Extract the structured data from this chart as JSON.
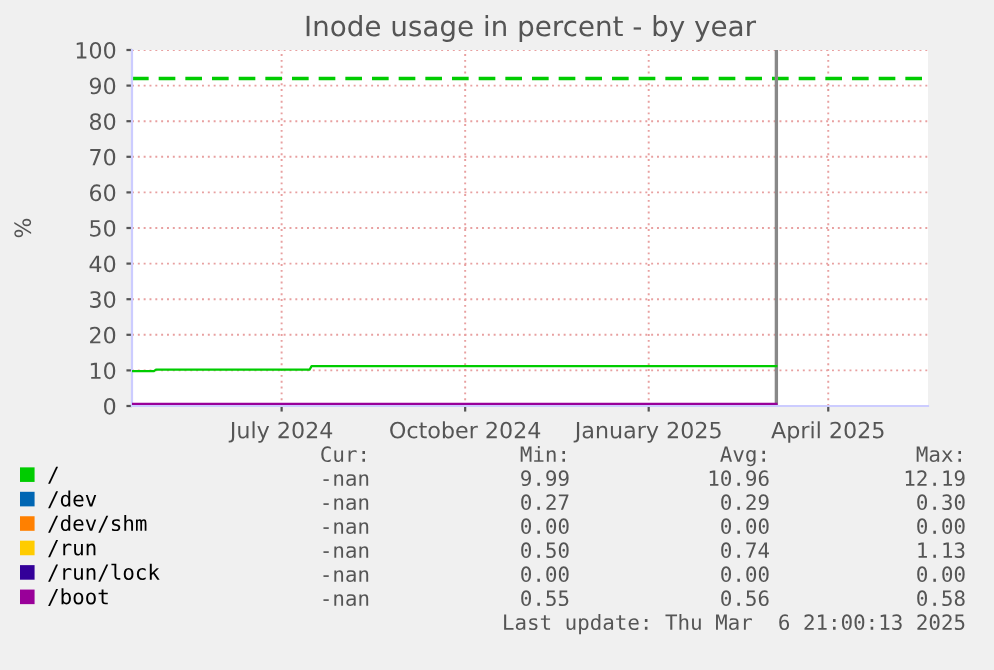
{
  "chart_data": {
    "type": "line",
    "title": "Inode usage in percent - by year",
    "ylabel": "%",
    "x": [
      "2024-04-17",
      "2024-04-28",
      "2024-04-29",
      "2024-07-15",
      "2024-07-16",
      "2025-03-06"
    ],
    "series": [
      {
        "name": "/",
        "color": "#00cc00",
        "values": [
          9.8,
          9.8,
          10.2,
          10.2,
          11.2,
          11.2
        ]
      },
      {
        "name": "/dev",
        "color": "#0066b3",
        "values": [
          null,
          null,
          null,
          null,
          null,
          null
        ]
      },
      {
        "name": "/dev/shm",
        "color": "#ff8000",
        "values": [
          null,
          null,
          null,
          null,
          null,
          null
        ]
      },
      {
        "name": "/run",
        "color": "#ffcc00",
        "values": [
          null,
          null,
          null,
          null,
          null,
          null
        ]
      },
      {
        "name": "/run/lock",
        "color": "#330099",
        "values": [
          null,
          null,
          null,
          null,
          null,
          null
        ]
      },
      {
        "name": "/boot",
        "color": "#990099",
        "values": [
          0.6,
          0.6,
          0.6,
          0.6,
          0.6,
          0.6
        ]
      }
    ],
    "xlim": [
      "2024-04-17",
      "2025-05-21"
    ],
    "xticks": [
      {
        "value": "2024-07-01",
        "label": "July 2024"
      },
      {
        "value": "2024-10-01",
        "label": "October 2024"
      },
      {
        "value": "2025-01-01",
        "label": "January 2025"
      },
      {
        "value": "2025-04-01",
        "label": "April 2025"
      }
    ],
    "ylim": [
      0,
      100
    ],
    "yticks": [
      0,
      10,
      20,
      30,
      40,
      50,
      60,
      70,
      80,
      90,
      100
    ],
    "ref_lines": [
      {
        "axis": "y",
        "value": 92,
        "color": "#00cc00",
        "line_style": "dashed"
      },
      {
        "axis": "x",
        "value": "2025-03-06",
        "color": "#888888",
        "line_style": "solid"
      }
    ],
    "grid": true,
    "legend": "bottom",
    "marker": "none",
    "line_style": "solid",
    "annotations": [
      "Cur:",
      "Min:",
      "Avg:",
      "Max:",
      "-nan",
      "9.99",
      "10.96",
      "12.19",
      "-nan",
      "0.27",
      "0.29",
      "0.30",
      "-nan",
      "0.00",
      "0.00",
      "0.00",
      "-nan",
      "0.50",
      "0.74",
      "1.13",
      "-nan",
      "0.00",
      "0.00",
      "0.00",
      "-nan",
      "0.55",
      "0.56",
      "0.58",
      "Last update: Thu Mar  6 21:00:13 2025"
    ]
  }
}
